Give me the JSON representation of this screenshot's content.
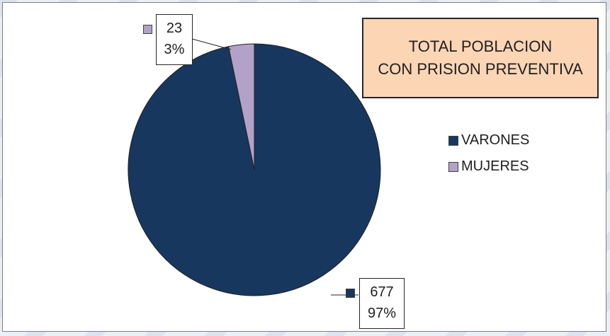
{
  "chart_data": {
    "type": "pie",
    "title": "TOTAL POBLACION CON PRISION PREVENTIVA",
    "title_lines": [
      "TOTAL POBLACION",
      "CON PRISION PREVENTIVA"
    ],
    "categories": [
      "VARONES",
      "MUJERES"
    ],
    "values": [
      677,
      23
    ],
    "percent_labels": [
      "97%",
      "3%"
    ],
    "value_labels": [
      "677",
      "23"
    ],
    "colors": [
      "#17375e",
      "#b3a2c7"
    ],
    "legend_position": "right"
  }
}
